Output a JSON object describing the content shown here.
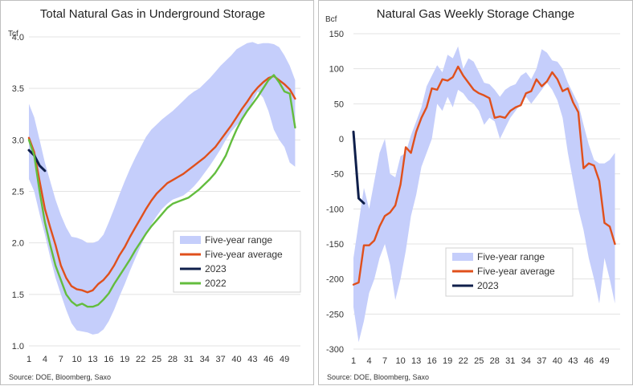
{
  "charts": [
    {
      "title": "Total Natural Gas in Underground Storage",
      "unit": "Tcf",
      "source": "Source:  DOE, Bloomberg,  Saxo"
    },
    {
      "title": "Natural Gas Weekly Storage Change",
      "unit": "Bcf",
      "source": "Source:  DOE, Bloomberg,  Saxo"
    }
  ],
  "colors": {
    "range": "#c5cefb",
    "average": "#e0501c",
    "y2023": "#0f1f4b",
    "y2022": "#63bd3e"
  },
  "chart_data": [
    {
      "type": "area",
      "title": "Total Natural Gas in Underground Storage",
      "ylabel": "Tcf",
      "ylim": [
        1.0,
        4.0
      ],
      "yticks": [
        "1.0",
        "1.5",
        "2.0",
        "2.5",
        "3.0",
        "3.5",
        "4.0"
      ],
      "xlim": [
        1,
        52
      ],
      "xticks": [
        "1",
        "4",
        "7",
        "10",
        "13",
        "16",
        "19",
        "22",
        "25",
        "28",
        "31",
        "34",
        "37",
        "40",
        "43",
        "46",
        "49"
      ],
      "legend_position": "bottom-right",
      "series": [
        {
          "name": "Five-year range",
          "kind": "band",
          "x": [
            1,
            2,
            3,
            4,
            5,
            6,
            7,
            8,
            9,
            10,
            11,
            12,
            13,
            14,
            15,
            16,
            17,
            18,
            19,
            20,
            21,
            22,
            23,
            24,
            25,
            26,
            27,
            28,
            29,
            30,
            31,
            32,
            33,
            34,
            35,
            36,
            37,
            38,
            39,
            40,
            41,
            42,
            43,
            44,
            45,
            46,
            47,
            48,
            49,
            50,
            51
          ],
          "upper": [
            3.35,
            3.22,
            3.0,
            2.78,
            2.6,
            2.42,
            2.27,
            2.15,
            2.06,
            2.05,
            2.03,
            2.0,
            2.0,
            2.02,
            2.08,
            2.2,
            2.33,
            2.47,
            2.6,
            2.72,
            2.83,
            2.93,
            3.03,
            3.1,
            3.15,
            3.2,
            3.24,
            3.28,
            3.33,
            3.38,
            3.43,
            3.47,
            3.5,
            3.55,
            3.6,
            3.66,
            3.72,
            3.77,
            3.82,
            3.88,
            3.91,
            3.94,
            3.95,
            3.93,
            3.94,
            3.94,
            3.93,
            3.9,
            3.82,
            3.72,
            3.58
          ],
          "lower": [
            2.62,
            2.5,
            2.28,
            2.08,
            1.86,
            1.66,
            1.5,
            1.35,
            1.22,
            1.15,
            1.14,
            1.13,
            1.11,
            1.12,
            1.16,
            1.24,
            1.35,
            1.48,
            1.6,
            1.73,
            1.85,
            1.97,
            2.08,
            2.18,
            2.26,
            2.33,
            2.38,
            2.42,
            2.44,
            2.46,
            2.5,
            2.55,
            2.61,
            2.68,
            2.75,
            2.83,
            2.91,
            3.0,
            3.08,
            3.14,
            3.19,
            3.27,
            3.37,
            3.47,
            3.41,
            3.28,
            3.1,
            3.0,
            2.93,
            2.78,
            2.74
          ]
        },
        {
          "name": "Five-year average",
          "kind": "line",
          "x": [
            1,
            2,
            3,
            4,
            5,
            6,
            7,
            8,
            9,
            10,
            11,
            12,
            13,
            14,
            15,
            16,
            17,
            18,
            19,
            20,
            21,
            22,
            23,
            24,
            25,
            26,
            27,
            28,
            29,
            30,
            31,
            32,
            33,
            34,
            35,
            36,
            37,
            38,
            39,
            40,
            41,
            42,
            43,
            44,
            45,
            46,
            47,
            48,
            49,
            50,
            51
          ],
          "y": [
            3.02,
            2.88,
            2.6,
            2.33,
            2.15,
            1.98,
            1.78,
            1.66,
            1.58,
            1.55,
            1.54,
            1.52,
            1.54,
            1.6,
            1.64,
            1.7,
            1.78,
            1.88,
            1.96,
            2.06,
            2.15,
            2.24,
            2.33,
            2.41,
            2.48,
            2.53,
            2.58,
            2.61,
            2.64,
            2.67,
            2.71,
            2.75,
            2.79,
            2.83,
            2.88,
            2.93,
            3.0,
            3.07,
            3.14,
            3.22,
            3.3,
            3.37,
            3.45,
            3.51,
            3.56,
            3.6,
            3.62,
            3.58,
            3.54,
            3.49,
            3.4
          ]
        },
        {
          "name": "2023",
          "kind": "line",
          "x": [
            1,
            2,
            3,
            4
          ],
          "y": [
            2.9,
            2.85,
            2.75,
            2.7
          ]
        },
        {
          "name": "2022",
          "kind": "line",
          "x": [
            1,
            2,
            3,
            4,
            5,
            6,
            7,
            8,
            9,
            10,
            11,
            12,
            13,
            14,
            15,
            16,
            17,
            18,
            19,
            20,
            21,
            22,
            23,
            24,
            25,
            26,
            27,
            28,
            29,
            30,
            31,
            32,
            33,
            34,
            35,
            36,
            37,
            38,
            39,
            40,
            41,
            42,
            43,
            44,
            45,
            46,
            47,
            48,
            49,
            50,
            51
          ],
          "y": [
            3.0,
            2.85,
            2.5,
            2.2,
            1.98,
            1.78,
            1.64,
            1.5,
            1.43,
            1.39,
            1.41,
            1.38,
            1.38,
            1.4,
            1.45,
            1.51,
            1.6,
            1.68,
            1.76,
            1.84,
            1.93,
            2.01,
            2.09,
            2.16,
            2.22,
            2.28,
            2.34,
            2.38,
            2.4,
            2.42,
            2.44,
            2.48,
            2.52,
            2.57,
            2.62,
            2.68,
            2.76,
            2.85,
            2.98,
            3.1,
            3.2,
            3.28,
            3.35,
            3.42,
            3.5,
            3.58,
            3.63,
            3.56,
            3.47,
            3.45,
            3.12
          ]
        }
      ]
    },
    {
      "type": "area",
      "title": "Natural Gas Weekly Storage Change",
      "ylabel": "Bcf",
      "ylim": [
        -300,
        150
      ],
      "yticks": [
        "-300",
        "-250",
        "-200",
        "-150",
        "-100",
        "-50",
        "0",
        "50",
        "100",
        "150"
      ],
      "xlim": [
        1,
        52
      ],
      "xticks": [
        "1",
        "4",
        "7",
        "10",
        "13",
        "16",
        "19",
        "22",
        "25",
        "28",
        "31",
        "34",
        "37",
        "40",
        "43",
        "46",
        "49"
      ],
      "legend_position": "bottom-center",
      "series": [
        {
          "name": "Five-year range",
          "kind": "band",
          "x": [
            1,
            2,
            3,
            4,
            5,
            6,
            7,
            8,
            9,
            10,
            11,
            12,
            13,
            14,
            15,
            16,
            17,
            18,
            19,
            20,
            21,
            22,
            23,
            24,
            25,
            26,
            27,
            28,
            29,
            30,
            31,
            32,
            33,
            34,
            35,
            36,
            37,
            38,
            39,
            40,
            41,
            42,
            43,
            44,
            45,
            46,
            47,
            48,
            49,
            50,
            51
          ],
          "upper": [
            -170,
            -120,
            -70,
            -100,
            -60,
            -20,
            0,
            -50,
            -55,
            -25,
            -20,
            5,
            25,
            45,
            75,
            90,
            105,
            95,
            120,
            115,
            132,
            100,
            115,
            110,
            95,
            80,
            78,
            70,
            60,
            70,
            75,
            78,
            90,
            95,
            85,
            100,
            128,
            123,
            112,
            110,
            100,
            80,
            65,
            50,
            20,
            -8,
            -30,
            -35,
            -35,
            -30,
            -20
          ],
          "lower": [
            -240,
            -290,
            -260,
            -220,
            -200,
            -170,
            -150,
            -180,
            -230,
            -200,
            -160,
            -110,
            -80,
            -40,
            -20,
            0,
            50,
            40,
            60,
            45,
            70,
            65,
            55,
            50,
            40,
            20,
            30,
            25,
            0,
            15,
            30,
            40,
            50,
            60,
            50,
            60,
            70,
            80,
            70,
            55,
            30,
            -20,
            -60,
            -100,
            -130,
            -170,
            -200,
            -235,
            -170,
            -200,
            -235
          ]
        },
        {
          "name": "Five-year average",
          "kind": "line",
          "x": [
            1,
            2,
            3,
            4,
            5,
            6,
            7,
            8,
            9,
            10,
            11,
            12,
            13,
            14,
            15,
            16,
            17,
            18,
            19,
            20,
            21,
            22,
            23,
            24,
            25,
            26,
            27,
            28,
            29,
            30,
            31,
            32,
            33,
            34,
            35,
            36,
            37,
            38,
            39,
            40,
            41,
            42,
            43,
            44,
            45,
            46,
            47,
            48,
            49,
            50,
            51
          ],
          "y": [
            -208,
            -205,
            -152,
            -152,
            -145,
            -125,
            -110,
            -105,
            -95,
            -65,
            -12,
            -20,
            10,
            30,
            45,
            72,
            70,
            85,
            83,
            88,
            103,
            90,
            80,
            70,
            65,
            62,
            58,
            30,
            32,
            30,
            40,
            45,
            48,
            65,
            68,
            85,
            75,
            82,
            95,
            85,
            68,
            72,
            52,
            38,
            -42,
            -35,
            -38,
            -60,
            -120,
            -125,
            -150
          ]
        },
        {
          "name": "2023",
          "kind": "line",
          "x": [
            1,
            2,
            3
          ],
          "y": [
            10,
            -85,
            -92
          ]
        }
      ]
    }
  ]
}
